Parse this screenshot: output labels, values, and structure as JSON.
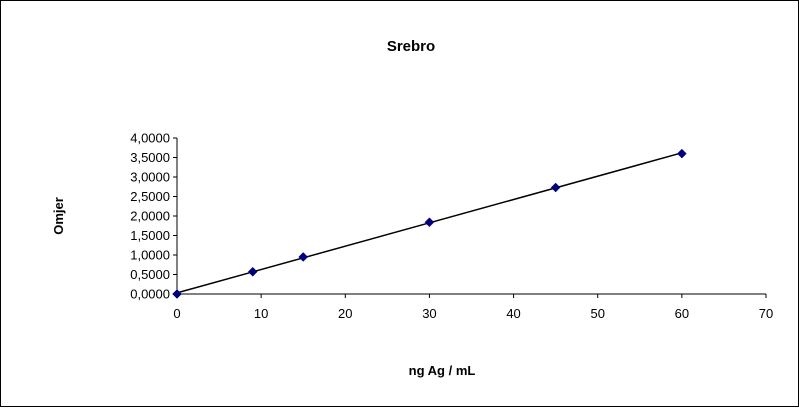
{
  "chart_data": {
    "type": "scatter",
    "title": "Srebro",
    "xlabel": "ng Ag / mL",
    "ylabel": "Omjer",
    "xlim": [
      0,
      70
    ],
    "ylim": [
      0,
      4
    ],
    "x_ticks": [
      "0",
      "10",
      "20",
      "30",
      "40",
      "50",
      "60",
      "70"
    ],
    "y_ticks": [
      "0,0000",
      "0,5000",
      "1,0000",
      "1,5000",
      "2,0000",
      "2,5000",
      "3,0000",
      "3,5000",
      "4,0000"
    ],
    "grid": false,
    "legend": "none",
    "trendline": "linear",
    "marker": "diamond",
    "marker_color": "#00007f",
    "line_color": "#000000",
    "series": [
      {
        "x": [
          0,
          9,
          15,
          30,
          45,
          60
        ],
        "y": [
          0.0,
          0.57,
          0.95,
          1.84,
          2.73,
          3.6
        ]
      }
    ]
  }
}
